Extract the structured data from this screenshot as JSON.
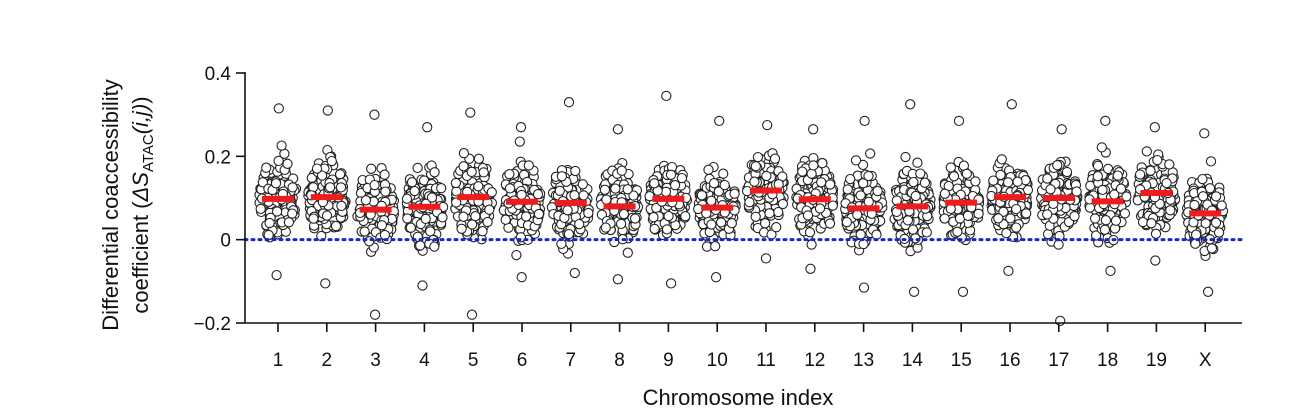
{
  "chart_data": {
    "type": "scatter",
    "subtype": "beeswarm",
    "xlabel": "Chromosome index",
    "ylabel_line1": "Differential coaccessibility",
    "ylabel_line2_prefix": "coefficient (",
    "ylabel_symbol": "ΔS",
    "ylabel_subscript": "ATAC",
    "ylabel_args": "(i,j)",
    "ylabel_suffix": ")",
    "ylim": [
      -0.2,
      0.4
    ],
    "yticks": [
      -0.2,
      0,
      0.2,
      0.4
    ],
    "ytick_labels": [
      "−0.2",
      "0",
      "0.2",
      "0.4"
    ],
    "categories": [
      "1",
      "2",
      "3",
      "4",
      "5",
      "6",
      "7",
      "8",
      "9",
      "10",
      "11",
      "12",
      "13",
      "14",
      "15",
      "16",
      "17",
      "18",
      "19",
      "X"
    ],
    "medians": [
      0.098,
      0.102,
      0.072,
      0.079,
      0.102,
      0.091,
      0.088,
      0.08,
      0.098,
      0.077,
      0.118,
      0.097,
      0.075,
      0.08,
      0.089,
      0.102,
      0.1,
      0.092,
      0.112,
      0.063
    ],
    "mins": [
      -0.085,
      -0.105,
      -0.18,
      -0.11,
      -0.18,
      -0.09,
      -0.08,
      -0.095,
      -0.105,
      -0.09,
      -0.045,
      -0.07,
      -0.115,
      -0.125,
      -0.125,
      -0.075,
      -0.195,
      -0.075,
      -0.05,
      -0.125
    ],
    "maxs": [
      0.315,
      0.31,
      0.3,
      0.27,
      0.305,
      0.27,
      0.33,
      0.265,
      0.345,
      0.285,
      0.275,
      0.265,
      0.285,
      0.325,
      0.285,
      0.325,
      0.265,
      0.285,
      0.27,
      0.255
    ],
    "reference_line": {
      "y": 0,
      "style": "dotted",
      "color": "#1525c8"
    },
    "median_color": "#ee1c1c",
    "point_style": "open circles",
    "grid": false,
    "legend": "none"
  }
}
